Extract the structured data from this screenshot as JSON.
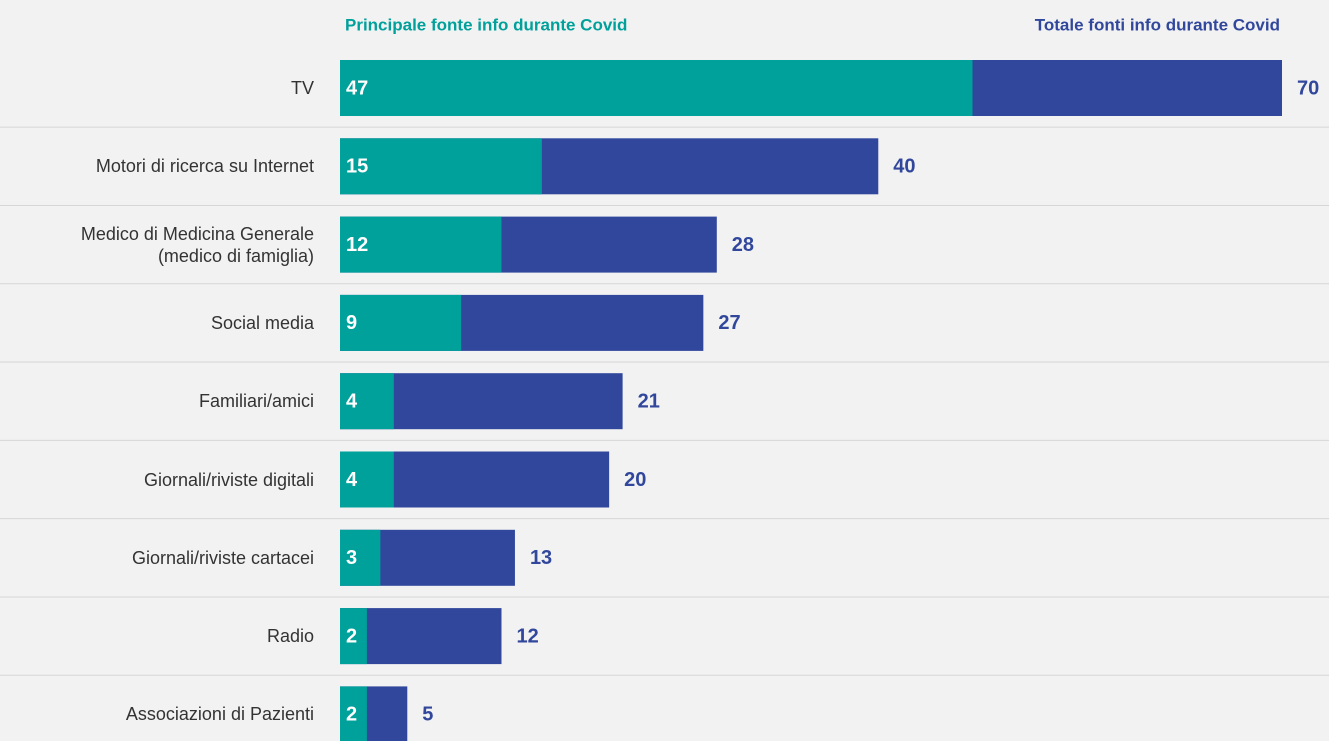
{
  "chart_data": {
    "type": "bar",
    "orientation": "horizontal",
    "overlap": true,
    "categories": [
      "TV",
      "Motori di ricerca su Internet",
      "Medico di Medicina Generale\n(medico di famiglia)",
      "Social media",
      "Familiari/amici",
      "Giornali/riviste digitali",
      "Giornali/riviste cartacei",
      "Radio",
      "Associazioni di Pazienti"
    ],
    "series": [
      {
        "name": "Totale fonti info durante Covid",
        "color": "#31479c",
        "values": [
          70,
          40,
          28,
          27,
          21,
          20,
          13,
          12,
          5
        ]
      },
      {
        "name": "Principale fonte info durante Covid",
        "color": "#00a09b",
        "values": [
          47,
          15,
          12,
          9,
          4,
          4,
          3,
          2,
          2
        ]
      }
    ]
  }
}
